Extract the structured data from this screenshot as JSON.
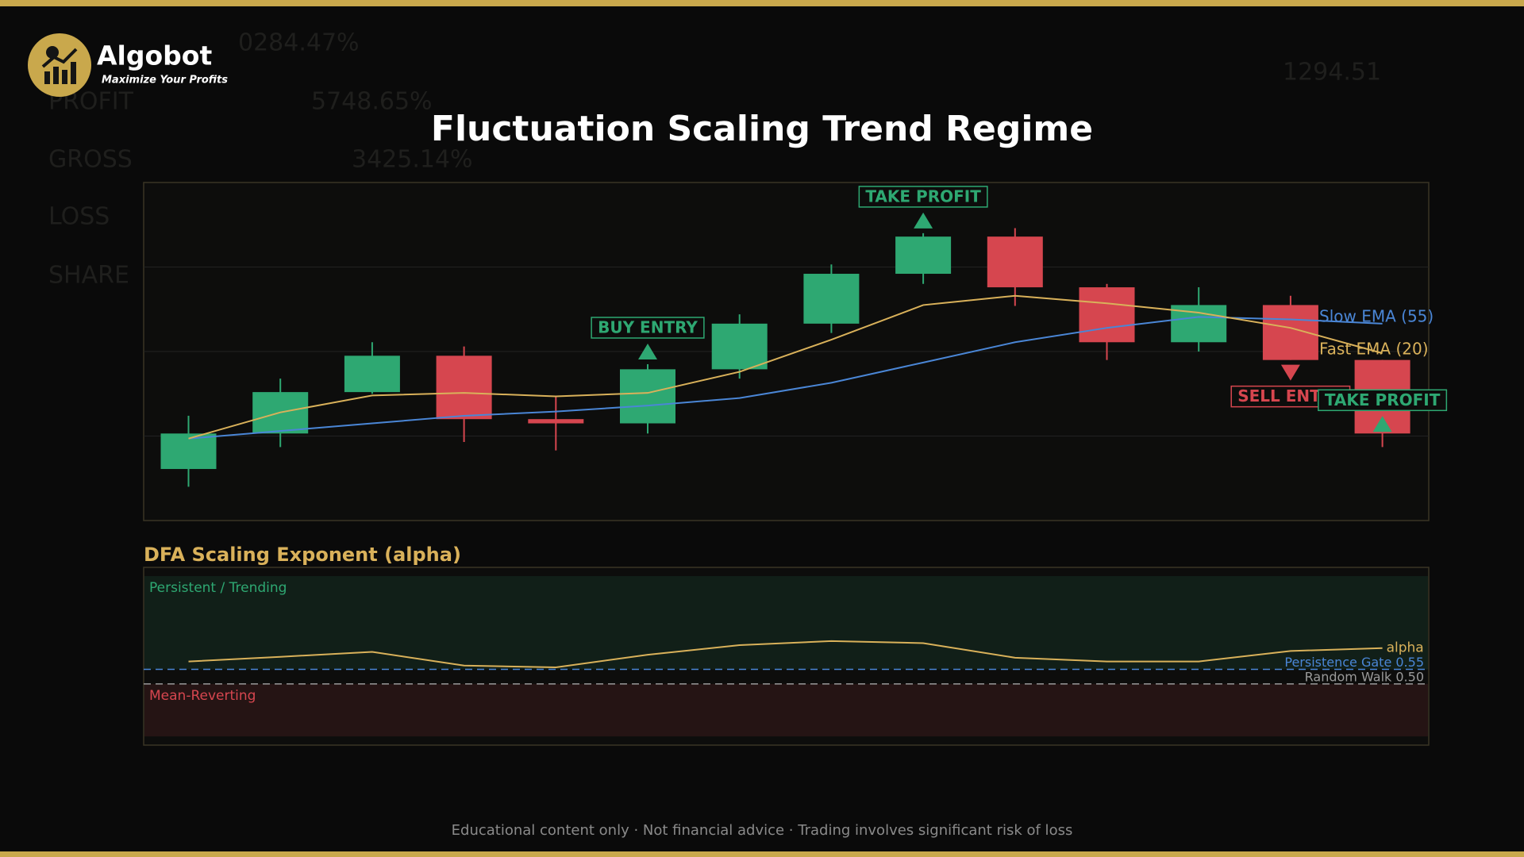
{
  "header": {
    "brand": "Algobot",
    "tagline": "Maximize Your Profits"
  },
  "backdrop": [
    "0284.47%",
    "PROFIT",
    "5748.65%",
    "GROSS",
    "3425.14%",
    "LOSS",
    "SHARE",
    "1294.51"
  ],
  "footer": "Educational content only  ·  Not financial advice  ·  Trading involves significant risk of loss",
  "chart_data": [
    {
      "type": "candlestick",
      "title": "Fluctuation Scaling Trend Regime",
      "ylim": [
        90,
        130
      ],
      "grid_lines": [
        100,
        110,
        120
      ],
      "up_color": "#2ea872",
      "down_color": "#d6464f",
      "candles": [
        {
          "open": 96.1,
          "high": 102.4,
          "low": 94.0,
          "close": 100.3
        },
        {
          "open": 100.3,
          "high": 106.8,
          "low": 98.7,
          "close": 105.2
        },
        {
          "open": 105.2,
          "high": 111.1,
          "low": 105.0,
          "close": 109.5
        },
        {
          "open": 109.5,
          "high": 110.6,
          "low": 99.3,
          "close": 102.0
        },
        {
          "open": 102.0,
          "high": 104.7,
          "low": 98.3,
          "close": 101.5
        },
        {
          "open": 101.5,
          "high": 108.5,
          "low": 100.3,
          "close": 107.9
        },
        {
          "open": 107.9,
          "high": 114.4,
          "low": 106.8,
          "close": 113.3
        },
        {
          "open": 113.3,
          "high": 120.3,
          "low": 112.2,
          "close": 119.2
        },
        {
          "open": 119.2,
          "high": 124.0,
          "low": 118.0,
          "close": 123.6
        },
        {
          "open": 123.6,
          "high": 124.6,
          "low": 115.4,
          "close": 117.6
        },
        {
          "open": 117.6,
          "high": 118.0,
          "low": 109.0,
          "close": 111.1
        },
        {
          "open": 111.1,
          "high": 117.6,
          "low": 110.0,
          "close": 115.5
        },
        {
          "open": 115.5,
          "high": 116.6,
          "low": 109.0,
          "close": 109.0
        },
        {
          "open": 109.0,
          "high": 109.0,
          "low": 98.7,
          "close": 100.3
        }
      ],
      "series": [
        {
          "name": "Slow EMA (55)",
          "color": "#4a86d6",
          "values": [
            99.7,
            100.6,
            101.5,
            102.4,
            102.9,
            103.6,
            104.5,
            106.3,
            108.7,
            111.1,
            112.8,
            114.1,
            113.8,
            113.3
          ]
        },
        {
          "name": "Fast EMA (20)",
          "color": "#d9b15a",
          "values": [
            99.7,
            102.8,
            104.8,
            105.1,
            104.7,
            105.1,
            107.6,
            111.4,
            115.5,
            116.6,
            115.7,
            114.6,
            112.8,
            109.8
          ]
        }
      ],
      "annotations": [
        {
          "text": "BUY ENTRY",
          "index": 5,
          "direction": "up",
          "placement": "above",
          "color": "#2ea872"
        },
        {
          "text": "TAKE PROFIT",
          "index": 8,
          "direction": "up",
          "placement": "above",
          "color": "#2ea872"
        },
        {
          "text": "SELL ENTRY",
          "index": 12,
          "direction": "down",
          "placement": "below",
          "color": "#d6464f"
        },
        {
          "text": "TAKE PROFIT",
          "index": 13,
          "direction": "up",
          "placement": "inside",
          "color": "#2ea872"
        }
      ]
    },
    {
      "type": "line",
      "title": "DFA Scaling Exponent (alpha)",
      "ylim": [
        0.29,
        0.9
      ],
      "zones": [
        {
          "label": "Persistent / Trending",
          "range": [
            0.55,
            0.87
          ],
          "color": "#2ea872"
        },
        {
          "label": "Mean-Reverting",
          "range": [
            0.32,
            0.5
          ],
          "color": "#d6464f"
        }
      ],
      "levels": [
        {
          "value": 0.55,
          "label": "Persistence Gate 0.55",
          "color": "#4a86d6"
        },
        {
          "value": 0.5,
          "label": "Random Walk 0.50",
          "color": "#9a9a9a"
        }
      ],
      "series": [
        {
          "name": "alpha",
          "color": "#d9b15a",
          "values": [
            0.577,
            0.593,
            0.61,
            0.563,
            0.557,
            0.6,
            0.633,
            0.647,
            0.64,
            0.59,
            0.577,
            0.577,
            0.613,
            0.623
          ]
        }
      ]
    }
  ]
}
